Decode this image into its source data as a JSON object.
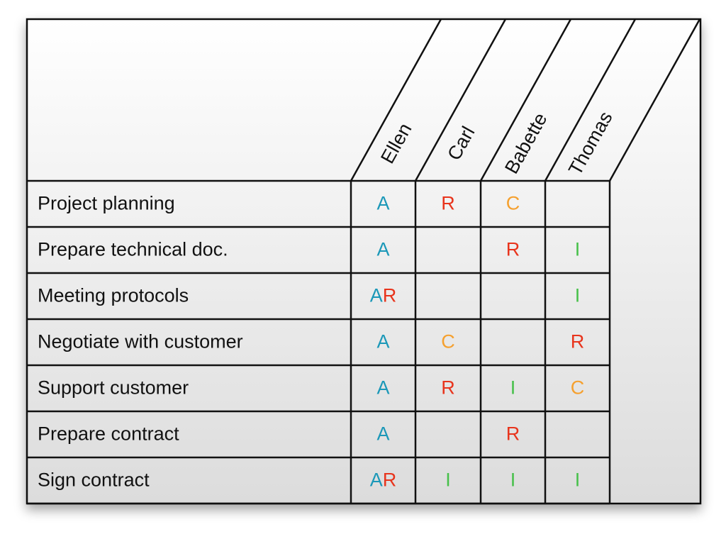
{
  "columns": [
    "Ellen",
    "Carl",
    "Babette",
    "Thomas"
  ],
  "rows": [
    {
      "task": "Project planning",
      "cells": [
        [
          "A"
        ],
        [
          "R"
        ],
        [
          "C"
        ],
        []
      ]
    },
    {
      "task": "Prepare technical doc.",
      "cells": [
        [
          "A"
        ],
        [],
        [
          "R"
        ],
        [
          "I"
        ]
      ]
    },
    {
      "task": "Meeting protocols",
      "cells": [
        [
          "A",
          "R"
        ],
        [],
        [],
        [
          "I"
        ]
      ]
    },
    {
      "task": "Negotiate with customer",
      "cells": [
        [
          "A"
        ],
        [
          "C"
        ],
        [],
        [
          "R"
        ]
      ]
    },
    {
      "task": "Support customer",
      "cells": [
        [
          "A"
        ],
        [
          "R"
        ],
        [
          "I"
        ],
        [
          "C"
        ]
      ]
    },
    {
      "task": "Prepare contract",
      "cells": [
        [
          "A"
        ],
        [],
        [
          "R"
        ],
        []
      ]
    },
    {
      "task": "Sign contract",
      "cells": [
        [
          "A",
          "R"
        ],
        [
          "I"
        ],
        [
          "I"
        ],
        [
          "I"
        ]
      ]
    }
  ],
  "colors": {
    "A": "#1b98b8",
    "R": "#e8341c",
    "C": "#f5a02e",
    "I": "#47c04a"
  }
}
